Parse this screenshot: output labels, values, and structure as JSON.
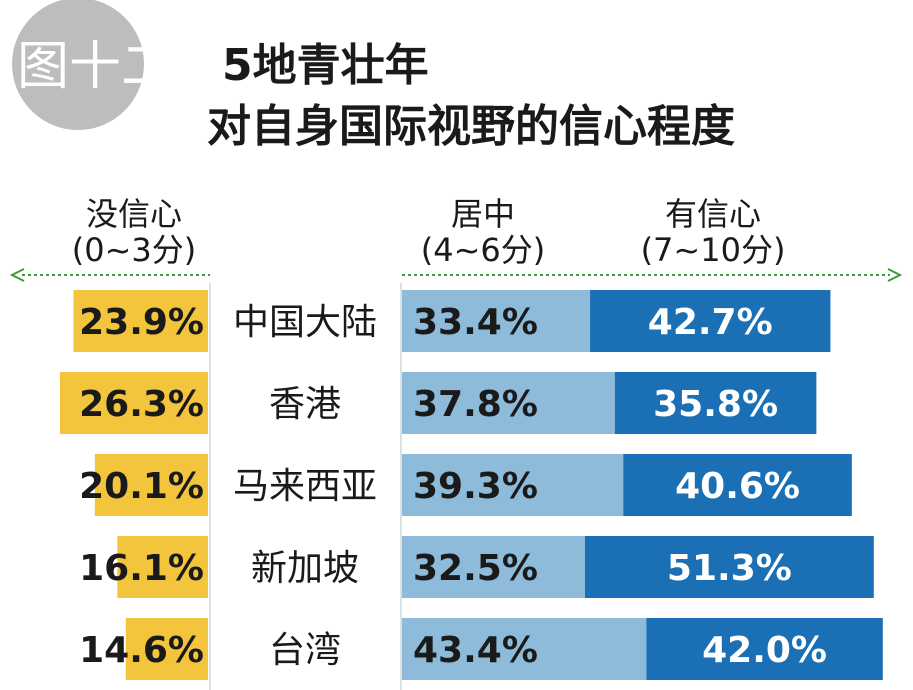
{
  "figure_label": "图十二",
  "title_line1": "5地青壮年",
  "title_line2": "对自身国际视野的信心程度",
  "colors": {
    "neg": "#F2C53D",
    "mid": "#8DBBD9",
    "pos": "#1B6FB4",
    "badge": "#BDBDBD",
    "arrow": "#3F9C3A"
  },
  "chart_data": {
    "type": "bar",
    "stacked": "diverging",
    "title": "5地青壮年 对自身国际视野的信心程度",
    "categories": [
      "中国大陆",
      "香港",
      "马来西亚",
      "新加坡",
      "台湾"
    ],
    "series": [
      {
        "name": "没信心",
        "sublabel": "(0~3分)",
        "values": [
          23.9,
          26.3,
          20.1,
          16.1,
          14.6
        ],
        "labels": [
          "23.9%",
          "26.3%",
          "20.1%",
          "16.1%",
          "14.6%"
        ]
      },
      {
        "name": "居中",
        "sublabel": "(4~6分)",
        "values": [
          33.4,
          37.8,
          39.3,
          32.5,
          43.4
        ],
        "labels": [
          "33.4%",
          "37.8%",
          "39.3%",
          "32.5%",
          "43.4%"
        ]
      },
      {
        "name": "有信心",
        "sublabel": "(7~10分)",
        "values": [
          42.7,
          35.8,
          40.6,
          51.3,
          42.0
        ],
        "labels": [
          "42.7%",
          "35.8%",
          "40.6%",
          "51.3%",
          "42.0%"
        ]
      }
    ],
    "grid": false
  }
}
